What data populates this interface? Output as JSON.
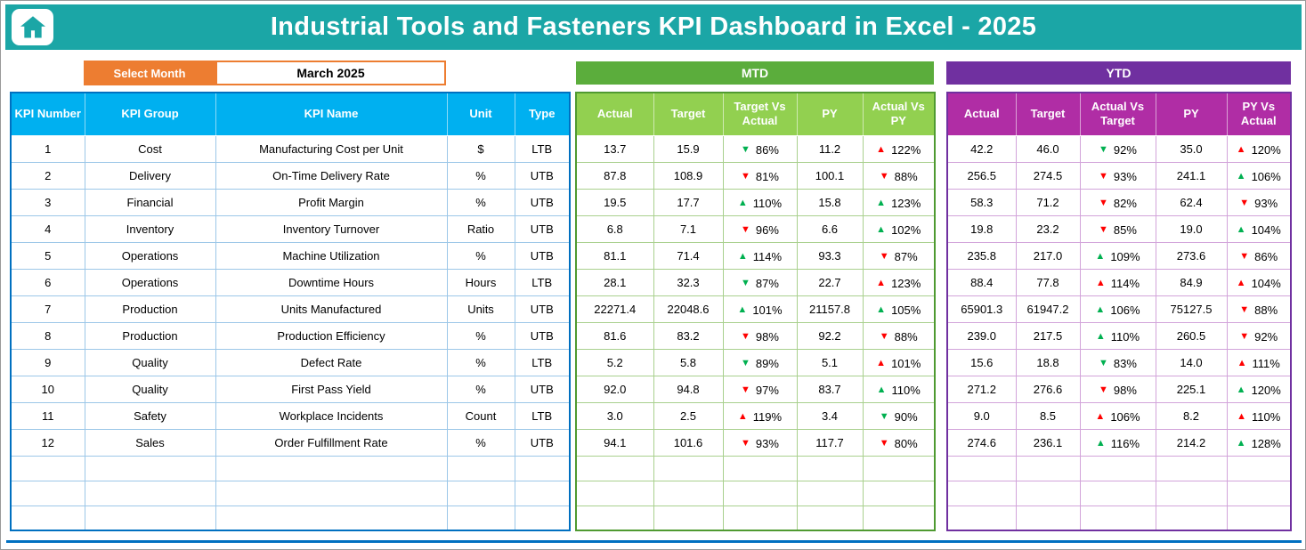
{
  "title": "Industrial Tools and Fasteners KPI Dashboard in Excel - 2025",
  "month_selector": {
    "label": "Select Month",
    "value": "March 2025"
  },
  "mtd": {
    "band_label": "MTD",
    "headers": [
      "Actual",
      "Target",
      "Target Vs Actual",
      "PY",
      "Actual Vs PY"
    ]
  },
  "ytd": {
    "band_label": "YTD",
    "headers": [
      "Actual",
      "Target",
      "Actual Vs Target",
      "PY",
      "PY Vs Actual"
    ]
  },
  "info_table": {
    "headers": [
      "KPI Number",
      "KPI Group",
      "KPI Name",
      "Unit",
      "Type"
    ]
  },
  "colors": {
    "titlebar_teal": "#1BA6A6",
    "select_month_orange": "#ED7D31",
    "info_header_blue": "#00B0F0",
    "mtd_band_green": "#5BAD3C",
    "mtd_header_green": "#92D050",
    "ytd_band_purple": "#7030A0",
    "ytd_header_magenta": "#B02DA5",
    "trend_up_bad_red": "#FF0000",
    "trend_good_green": "#00B050"
  },
  "empty_rows": 3,
  "rows": [
    {
      "num": "1",
      "group": "Cost",
      "name": "Manufacturing Cost per Unit",
      "unit": "$",
      "type": "LTB",
      "mtd": {
        "actual": "13.7",
        "target": "15.9",
        "tva": {
          "dir": "down",
          "color": "green",
          "pct": "86%"
        },
        "py": "11.2",
        "avp": {
          "dir": "up",
          "color": "red",
          "pct": "122%"
        }
      },
      "ytd": {
        "actual": "42.2",
        "target": "46.0",
        "avt": {
          "dir": "down",
          "color": "green",
          "pct": "92%"
        },
        "py": "35.0",
        "pva": {
          "dir": "up",
          "color": "red",
          "pct": "120%"
        }
      }
    },
    {
      "num": "2",
      "group": "Delivery",
      "name": "On-Time Delivery Rate",
      "unit": "%",
      "type": "UTB",
      "mtd": {
        "actual": "87.8",
        "target": "108.9",
        "tva": {
          "dir": "down",
          "color": "red",
          "pct": "81%"
        },
        "py": "100.1",
        "avp": {
          "dir": "down",
          "color": "red",
          "pct": "88%"
        }
      },
      "ytd": {
        "actual": "256.5",
        "target": "274.5",
        "avt": {
          "dir": "down",
          "color": "red",
          "pct": "93%"
        },
        "py": "241.1",
        "pva": {
          "dir": "up",
          "color": "green",
          "pct": "106%"
        }
      }
    },
    {
      "num": "3",
      "group": "Financial",
      "name": "Profit Margin",
      "unit": "%",
      "type": "UTB",
      "mtd": {
        "actual": "19.5",
        "target": "17.7",
        "tva": {
          "dir": "up",
          "color": "green",
          "pct": "110%"
        },
        "py": "15.8",
        "avp": {
          "dir": "up",
          "color": "green",
          "pct": "123%"
        }
      },
      "ytd": {
        "actual": "58.3",
        "target": "71.2",
        "avt": {
          "dir": "down",
          "color": "red",
          "pct": "82%"
        },
        "py": "62.4",
        "pva": {
          "dir": "down",
          "color": "red",
          "pct": "93%"
        }
      }
    },
    {
      "num": "4",
      "group": "Inventory",
      "name": "Inventory Turnover",
      "unit": "Ratio",
      "type": "UTB",
      "mtd": {
        "actual": "6.8",
        "target": "7.1",
        "tva": {
          "dir": "down",
          "color": "red",
          "pct": "96%"
        },
        "py": "6.6",
        "avp": {
          "dir": "up",
          "color": "green",
          "pct": "102%"
        }
      },
      "ytd": {
        "actual": "19.8",
        "target": "23.2",
        "avt": {
          "dir": "down",
          "color": "red",
          "pct": "85%"
        },
        "py": "19.0",
        "pva": {
          "dir": "up",
          "color": "green",
          "pct": "104%"
        }
      }
    },
    {
      "num": "5",
      "group": "Operations",
      "name": "Machine Utilization",
      "unit": "%",
      "type": "UTB",
      "mtd": {
        "actual": "81.1",
        "target": "71.4",
        "tva": {
          "dir": "up",
          "color": "green",
          "pct": "114%"
        },
        "py": "93.3",
        "avp": {
          "dir": "down",
          "color": "red",
          "pct": "87%"
        }
      },
      "ytd": {
        "actual": "235.8",
        "target": "217.0",
        "avt": {
          "dir": "up",
          "color": "green",
          "pct": "109%"
        },
        "py": "273.6",
        "pva": {
          "dir": "down",
          "color": "red",
          "pct": "86%"
        }
      }
    },
    {
      "num": "6",
      "group": "Operations",
      "name": "Downtime Hours",
      "unit": "Hours",
      "type": "LTB",
      "mtd": {
        "actual": "28.1",
        "target": "32.3",
        "tva": {
          "dir": "down",
          "color": "green",
          "pct": "87%"
        },
        "py": "22.7",
        "avp": {
          "dir": "up",
          "color": "red",
          "pct": "123%"
        }
      },
      "ytd": {
        "actual": "88.4",
        "target": "77.8",
        "avt": {
          "dir": "up",
          "color": "red",
          "pct": "114%"
        },
        "py": "84.9",
        "pva": {
          "dir": "up",
          "color": "red",
          "pct": "104%"
        }
      }
    },
    {
      "num": "7",
      "group": "Production",
      "name": "Units Manufactured",
      "unit": "Units",
      "type": "UTB",
      "mtd": {
        "actual": "22271.4",
        "target": "22048.6",
        "tva": {
          "dir": "up",
          "color": "green",
          "pct": "101%"
        },
        "py": "21157.8",
        "avp": {
          "dir": "up",
          "color": "green",
          "pct": "105%"
        }
      },
      "ytd": {
        "actual": "65901.3",
        "target": "61947.2",
        "avt": {
          "dir": "up",
          "color": "green",
          "pct": "106%"
        },
        "py": "75127.5",
        "pva": {
          "dir": "down",
          "color": "red",
          "pct": "88%"
        }
      }
    },
    {
      "num": "8",
      "group": "Production",
      "name": "Production Efficiency",
      "unit": "%",
      "type": "UTB",
      "mtd": {
        "actual": "81.6",
        "target": "83.2",
        "tva": {
          "dir": "down",
          "color": "red",
          "pct": "98%"
        },
        "py": "92.2",
        "avp": {
          "dir": "down",
          "color": "red",
          "pct": "88%"
        }
      },
      "ytd": {
        "actual": "239.0",
        "target": "217.5",
        "avt": {
          "dir": "up",
          "color": "green",
          "pct": "110%"
        },
        "py": "260.5",
        "pva": {
          "dir": "down",
          "color": "red",
          "pct": "92%"
        }
      }
    },
    {
      "num": "9",
      "group": "Quality",
      "name": "Defect Rate",
      "unit": "%",
      "type": "LTB",
      "mtd": {
        "actual": "5.2",
        "target": "5.8",
        "tva": {
          "dir": "down",
          "color": "green",
          "pct": "89%"
        },
        "py": "5.1",
        "avp": {
          "dir": "up",
          "color": "red",
          "pct": "101%"
        }
      },
      "ytd": {
        "actual": "15.6",
        "target": "18.8",
        "avt": {
          "dir": "down",
          "color": "green",
          "pct": "83%"
        },
        "py": "14.0",
        "pva": {
          "dir": "up",
          "color": "red",
          "pct": "111%"
        }
      }
    },
    {
      "num": "10",
      "group": "Quality",
      "name": "First Pass Yield",
      "unit": "%",
      "type": "UTB",
      "mtd": {
        "actual": "92.0",
        "target": "94.8",
        "tva": {
          "dir": "down",
          "color": "red",
          "pct": "97%"
        },
        "py": "83.7",
        "avp": {
          "dir": "up",
          "color": "green",
          "pct": "110%"
        }
      },
      "ytd": {
        "actual": "271.2",
        "target": "276.6",
        "avt": {
          "dir": "down",
          "color": "red",
          "pct": "98%"
        },
        "py": "225.1",
        "pva": {
          "dir": "up",
          "color": "green",
          "pct": "120%"
        }
      }
    },
    {
      "num": "11",
      "group": "Safety",
      "name": "Workplace Incidents",
      "unit": "Count",
      "type": "LTB",
      "mtd": {
        "actual": "3.0",
        "target": "2.5",
        "tva": {
          "dir": "up",
          "color": "red",
          "pct": "119%"
        },
        "py": "3.4",
        "avp": {
          "dir": "down",
          "color": "green",
          "pct": "90%"
        }
      },
      "ytd": {
        "actual": "9.0",
        "target": "8.5",
        "avt": {
          "dir": "up",
          "color": "red",
          "pct": "106%"
        },
        "py": "8.2",
        "pva": {
          "dir": "up",
          "color": "red",
          "pct": "110%"
        }
      }
    },
    {
      "num": "12",
      "group": "Sales",
      "name": "Order Fulfillment Rate",
      "unit": "%",
      "type": "UTB",
      "mtd": {
        "actual": "94.1",
        "target": "101.6",
        "tva": {
          "dir": "down",
          "color": "red",
          "pct": "93%"
        },
        "py": "117.7",
        "avp": {
          "dir": "down",
          "color": "red",
          "pct": "80%"
        }
      },
      "ytd": {
        "actual": "274.6",
        "target": "236.1",
        "avt": {
          "dir": "up",
          "color": "green",
          "pct": "116%"
        },
        "py": "214.2",
        "pva": {
          "dir": "up",
          "color": "green",
          "pct": "128%"
        }
      }
    }
  ]
}
